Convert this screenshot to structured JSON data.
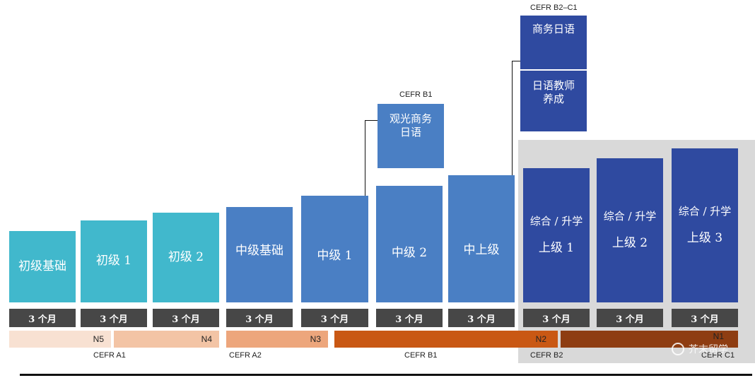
{
  "courses": {
    "beginner_foundation": "初级基础",
    "beginner_1": "初级 1",
    "beginner_2": "初级 2",
    "intermediate_foundation": "中级基础",
    "intermediate_1": "中级 1",
    "intermediate_2": "中级 2",
    "upper_intermediate": "中上级",
    "advanced_1": {
      "track": "综合 / 升学",
      "level": "上级 1"
    },
    "advanced_2": {
      "track": "综合 / 升学",
      "level": "上级 2"
    },
    "advanced_3": {
      "track": "综合 / 升学",
      "level": "上级 3"
    }
  },
  "special_courses": {
    "tourism_business": {
      "label_line1": "观光商务",
      "label_line2": "日语",
      "cefr": "CEFR B1"
    },
    "business_japanese": {
      "label": "商务日语",
      "cefr": "CEFR B2–C1"
    },
    "teacher_training": {
      "label_line1": "日语教师",
      "label_line2": "养成"
    }
  },
  "duration_label": "3 个月",
  "jlpt_levels": [
    "N5",
    "N4",
    "N3",
    "N2",
    "N1"
  ],
  "cefr_levels": [
    "CEFR A1",
    "CEFR A2",
    "CEFR B1",
    "CEFR B2",
    "CEFR C1"
  ],
  "colors": {
    "beginner": "#41b8cc",
    "intermediate": "#4a7fc4",
    "advanced": "#2f4aa0",
    "duration": "#474747",
    "n5": "#f8e1d2",
    "n4": "#f3c4a5",
    "n3": "#eda67c",
    "n2": "#c95814",
    "n1": "#8e3d12",
    "panel": "#d9d9d9"
  },
  "watermark": "芥末留学"
}
